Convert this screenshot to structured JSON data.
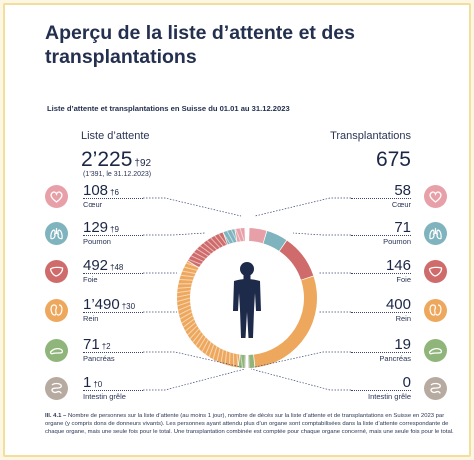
{
  "title": "Aperçu de la liste d’attente et des transplantations",
  "subtitle": "Liste d’attente et transplantations en Suisse du 01.01 au 31.12.2023",
  "waiting": {
    "heading": "Liste d’attente",
    "total": "2’225",
    "total_suffix": "†92",
    "total_note": "(1’391, le 31.12.2023)"
  },
  "transplants": {
    "heading": "Transplantations",
    "total": "675"
  },
  "organs": [
    {
      "label": "Cœur",
      "waiting": "108",
      "waiting_suffix": "†6",
      "transplanted": "58",
      "icon": "heart-icon",
      "color": "#e8a0a8",
      "waiting_value": 108,
      "transplanted_value": 58
    },
    {
      "label": "Poumon",
      "waiting": "129",
      "waiting_suffix": "†9",
      "transplanted": "71",
      "icon": "lungs-icon",
      "color": "#7fb3bd",
      "waiting_value": 129,
      "transplanted_value": 71
    },
    {
      "label": "Foie",
      "waiting": "492",
      "waiting_suffix": "†48",
      "transplanted": "146",
      "icon": "liver-icon",
      "color": "#cf6b6b",
      "waiting_value": 492,
      "transplanted_value": 146
    },
    {
      "label": "Rein",
      "waiting": "1’490",
      "waiting_suffix": "†30",
      "transplanted": "400",
      "icon": "kidney-icon",
      "color": "#eea85e",
      "waiting_value": 1490,
      "transplanted_value": 400
    },
    {
      "label": "Pancréas",
      "waiting": "71",
      "waiting_suffix": "†2",
      "transplanted": "19",
      "icon": "pancreas-icon",
      "color": "#8fb57a",
      "waiting_value": 71,
      "transplanted_value": 19
    },
    {
      "label": "Intestin grêle",
      "waiting": "1",
      "waiting_suffix": "†0",
      "transplanted": "0",
      "icon": "intestine-icon",
      "color": "#b7aaa0",
      "waiting_value": 1,
      "transplanted_value": 0
    }
  ],
  "caption_ref": "Ill. 4.1 –",
  "caption": "Nombre de personnes sur la liste d’attente (au moins 1 jour), nombre de décès sur la liste d’attente et de transplantations en Suisse en 2023 par organe (y compris dons de donneurs vivants). Les personnes ayant attendu plus d’un organe sont comptabilisées dans la liste d’attente correspondante de chaque organe, mais une seule fois pour le total. Une transplantation combinée est comptée pour chaque organe concerné, mais une seule fois pour le total."
}
